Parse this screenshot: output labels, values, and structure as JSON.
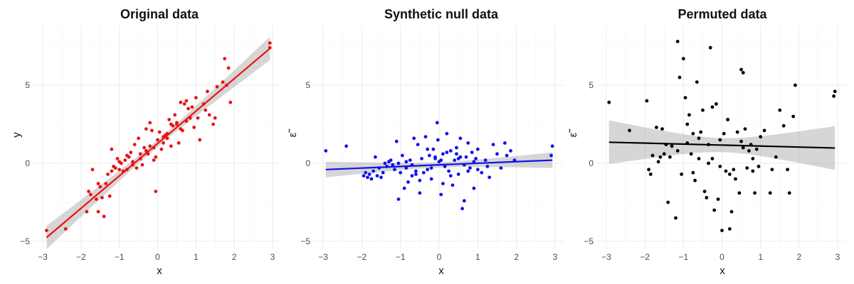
{
  "chart_data": [
    {
      "type": "scatter",
      "title": "Original data",
      "xlabel": "x",
      "ylabel": "y",
      "xlim": [
        -3,
        3
      ],
      "ylim": [
        -5,
        8
      ],
      "xticks": [
        -3,
        -2,
        -1,
        0,
        1,
        2,
        3
      ],
      "yticks": [
        -5,
        0,
        5
      ],
      "color": "#ee1111",
      "grid": true,
      "fit": {
        "x": [
          -2.9,
          2.93
        ],
        "y": [
          -4.75,
          7.35
        ],
        "band_halfwidth_ends": 0.75,
        "band_halfwidth_mid": 0.22
      },
      "series": [
        {
          "x": [
            -2.9,
            -2.4,
            -1.85,
            -1.8,
            -1.75,
            -1.7,
            -1.6,
            -1.55,
            -1.5,
            -1.45,
            -1.4,
            -1.35,
            -1.3,
            -1.25,
            -1.2,
            -1.15,
            -1.1,
            -1.05,
            -1.0,
            -0.95,
            -0.9,
            -0.85,
            -0.8,
            -0.75,
            -0.7,
            -0.65,
            -0.6,
            -0.55,
            -0.5,
            -0.45,
            -0.4,
            -0.35,
            -0.3,
            -0.25,
            -0.2,
            -0.15,
            -0.1,
            -0.05,
            0.0,
            0.05,
            0.1,
            0.15,
            0.2,
            0.25,
            0.3,
            0.35,
            0.4,
            0.45,
            0.5,
            0.55,
            0.6,
            0.65,
            0.7,
            0.75,
            0.8,
            0.85,
            0.9,
            0.95,
            1.0,
            1.1,
            1.2,
            1.3,
            1.35,
            1.45,
            1.5,
            1.55,
            1.7,
            1.75,
            1.8,
            1.85,
            -1.2,
            -0.65,
            -0.3,
            -0.1,
            0.5,
            -0.8,
            -0.2,
            0.25,
            0.75,
            1.25,
            -1.0,
            -0.45,
            0.15,
            0.6,
            1.05,
            -1.55,
            -0.05,
            0.35,
            2.93,
            2.93,
            1.9
          ],
          "y": [
            -4.3,
            -4.2,
            -3.1,
            -1.8,
            -2.0,
            -0.4,
            -2.3,
            -3.1,
            -1.5,
            -2.2,
            -3.4,
            -1.3,
            -0.7,
            -2.1,
            -0.5,
            -0.2,
            -0.3,
            0.3,
            0.1,
            0.0,
            -0.5,
            0.2,
            -0.4,
            0.4,
            0.7,
            0.1,
            1.2,
            -0.3,
            1.6,
            0.3,
            -0.1,
            1.0,
            2.2,
            0.6,
            2.6,
            2.1,
            1.0,
            -1.8,
            1.5,
            2.0,
            0.9,
            1.3,
            1.8,
            1.6,
            2.8,
            1.1,
            2.4,
            3.1,
            2.5,
            1.3,
            3.9,
            2.1,
            3.8,
            4.0,
            3.5,
            2.9,
            3.6,
            2.3,
            4.2,
            1.5,
            3.8,
            4.6,
            3.1,
            2.5,
            2.9,
            4.9,
            5.2,
            6.7,
            5.0,
            6.1,
            0.9,
            -0.1,
            0.8,
            0.2,
            2.6,
            0.5,
            1.1,
            1.9,
            2.7,
            3.4,
            -0.4,
            0.6,
            1.7,
            2.2,
            2.9,
            -1.3,
            0.4,
            2.5,
            7.7,
            7.4,
            3.9
          ]
        }
      ]
    },
    {
      "type": "scatter",
      "title": "Synthetic null data",
      "xlabel": "x",
      "ylabel": "ε̃",
      "xlim": [
        -3,
        3
      ],
      "ylim": [
        -5,
        8
      ],
      "xticks": [
        -3,
        -2,
        -1,
        0,
        1,
        2,
        3
      ],
      "yticks": [
        -5,
        0,
        5
      ],
      "color": "#1111ee",
      "grid": true,
      "fit": {
        "x": [
          -2.93,
          2.93
        ],
        "y": [
          -0.4,
          0.2
        ],
        "band_halfwidth_ends": 0.5,
        "band_halfwidth_mid": 0.17
      },
      "series": [
        {
          "x": [
            -2.93,
            -2.4,
            -1.95,
            -1.9,
            -1.85,
            -1.8,
            -1.75,
            -1.7,
            -1.65,
            -1.6,
            -1.55,
            -1.5,
            -1.45,
            -1.4,
            -1.35,
            -1.3,
            -1.25,
            -1.2,
            -1.15,
            -1.1,
            -1.05,
            -1.0,
            -0.95,
            -0.9,
            -0.85,
            -0.8,
            -0.75,
            -0.7,
            -0.65,
            -0.6,
            -0.55,
            -0.5,
            -0.45,
            -0.4,
            -0.35,
            -0.3,
            -0.25,
            -0.2,
            -0.15,
            -0.1,
            -0.05,
            0.0,
            0.05,
            0.1,
            0.15,
            0.2,
            0.25,
            0.3,
            0.35,
            0.4,
            0.45,
            0.5,
            0.55,
            0.6,
            0.65,
            0.7,
            0.75,
            0.8,
            0.85,
            0.9,
            0.95,
            1.0,
            1.1,
            1.2,
            1.3,
            1.4,
            1.5,
            1.6,
            1.7,
            1.75,
            1.85,
            1.95,
            2.9,
            2.93,
            -0.1,
            -0.03,
            0.3,
            0.5,
            -0.5,
            0.2,
            -0.7,
            0.65,
            1.0,
            -0.3,
            -0.85,
            0.1,
            0.45,
            -1.05,
            0.75,
            1.25,
            0.05,
            -0.2,
            0.55,
            -0.6,
            0.9
          ],
          "y": [
            0.8,
            1.1,
            -0.8,
            -0.6,
            -0.9,
            -0.7,
            -1.0,
            -0.5,
            0.4,
            -0.8,
            -0.3,
            -0.9,
            -0.6,
            0.0,
            -0.2,
            0.1,
            0.2,
            -0.1,
            -0.4,
            1.4,
            -2.3,
            -0.6,
            0.5,
            -1.6,
            -0.3,
            -1.2,
            0.2,
            -0.8,
            1.6,
            -0.5,
            1.2,
            -1.9,
            0.3,
            -0.6,
            1.7,
            -0.4,
            0.5,
            -1.0,
            0.9,
            0.3,
            2.6,
            0.1,
            -2.0,
            0.6,
            -0.2,
            1.9,
            -0.5,
            0.8,
            -1.4,
            0.2,
            1.0,
            -0.7,
            1.6,
            -2.9,
            -0.1,
            0.4,
            1.3,
            -0.3,
            0.7,
            -1.6,
            0.3,
            0.9,
            -0.6,
            0.2,
            -0.9,
            1.2,
            0.6,
            -0.3,
            1.3,
            0.5,
            0.8,
            0.2,
            0.5,
            1.1,
            0.4,
            1.5,
            -0.8,
            0.3,
            -1.1,
            0.7,
            -0.1,
            -2.4,
            -0.4,
            0.9,
            0.1,
            -1.3,
            0.6,
            0.0,
            -0.5,
            -0.2,
            0.2,
            -0.3,
            0.4,
            -0.7,
            0.1
          ]
        }
      ]
    },
    {
      "type": "scatter",
      "title": "Permuted data",
      "xlabel": "x",
      "ylabel": "ε̃",
      "xlim": [
        -3,
        3
      ],
      "ylim": [
        -5,
        8
      ],
      "xticks": [
        -3,
        -2,
        -1,
        0,
        1,
        2,
        3
      ],
      "yticks": [
        -5,
        0,
        5
      ],
      "color": "#000000",
      "grid": true,
      "fit": {
        "x": [
          -2.93,
          2.93
        ],
        "y": [
          1.35,
          0.98
        ],
        "band_halfwidth_ends": 1.4,
        "band_halfwidth_mid": 0.45
      },
      "series": [
        {
          "x": [
            -2.93,
            -2.4,
            -1.95,
            -1.9,
            -1.85,
            -1.8,
            -1.7,
            -1.6,
            -1.55,
            -1.5,
            -1.4,
            -1.35,
            -1.3,
            -1.2,
            -1.15,
            -1.1,
            -1.05,
            -1.0,
            -0.95,
            -0.9,
            -0.85,
            -0.8,
            -0.75,
            -0.7,
            -0.65,
            -0.6,
            -0.55,
            -0.5,
            -0.45,
            -0.4,
            -0.35,
            -0.3,
            -0.25,
            -0.2,
            -0.15,
            -0.1,
            -0.05,
            0.0,
            0.05,
            0.1,
            0.15,
            0.2,
            0.25,
            0.3,
            0.35,
            0.4,
            0.45,
            0.5,
            0.55,
            0.6,
            0.65,
            0.7,
            0.75,
            0.8,
            0.85,
            0.9,
            0.95,
            1.0,
            1.1,
            1.25,
            1.4,
            1.5,
            1.6,
            1.7,
            1.75,
            1.85,
            1.9,
            2.9,
            2.93,
            -1.15,
            -0.25,
            0.5,
            -1.65,
            -0.9,
            0.2,
            -0.05,
            0.8,
            1.3,
            -0.6,
            -0.35,
            -1.45,
            0.15,
            0.55,
            -0.75
          ],
          "y": [
            3.9,
            2.1,
            4.0,
            -0.4,
            -0.7,
            0.5,
            2.3,
            0.4,
            2.2,
            0.6,
            -2.5,
            0.4,
            1.1,
            -3.5,
            7.8,
            5.5,
            -0.7,
            6.7,
            4.2,
            2.5,
            3.1,
            0.6,
            1.9,
            -1.1,
            5.2,
            0.3,
            2.0,
            3.4,
            -1.8,
            -2.2,
            1.2,
            7.4,
            0.3,
            -3.0,
            3.8,
            -2.3,
            1.5,
            -4.3,
            1.9,
            -0.5,
            2.8,
            -4.2,
            -3.1,
            -0.4,
            -1.0,
            2.0,
            -1.9,
            6.0,
            5.8,
            2.2,
            -0.3,
            0.8,
            1.2,
            -0.5,
            -1.9,
            0.9,
            -0.2,
            1.7,
            2.1,
            -1.9,
            0.4,
            3.4,
            2.4,
            -0.4,
            -1.9,
            3.0,
            5.0,
            4.3,
            4.6,
            0.8,
            3.6,
            1.4,
            0.1,
            1.3,
            -0.7,
            -0.2,
            0.3,
            -0.4,
            1.6,
            0.0,
            1.2,
            2.8,
            1.0,
            -0.6
          ]
        }
      ]
    }
  ]
}
